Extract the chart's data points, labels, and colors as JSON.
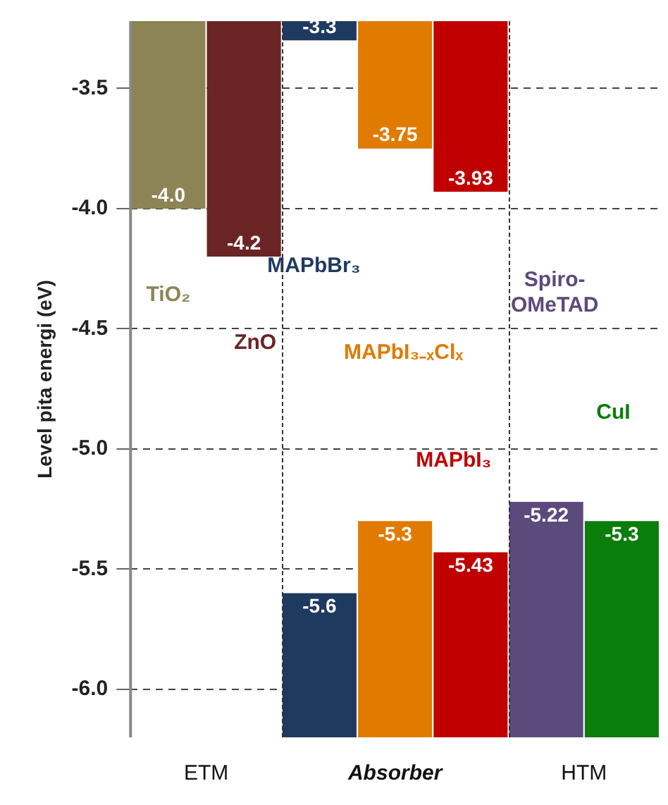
{
  "chart_data": {
    "type": "bar",
    "ylabel": "Level pita energi (eV)",
    "categories": [
      null,
      null,
      null,
      null,
      null,
      null,
      null
    ],
    "series": [
      {
        "colors": [
          "#8c8455",
          "#6b2424",
          "#1f3a5f",
          "#e07b00",
          "#c00000",
          null,
          null
        ],
        "base": [
          -3.22,
          -3.22,
          -3.22,
          -3.22,
          -3.22,
          null,
          null
        ],
        "values": [
          -0.78,
          -0.98,
          -0.08,
          -0.53,
          -0.71,
          null,
          null
        ],
        "value_labels": [
          "-4.0",
          "-4.2",
          "-3.3",
          "-3.75",
          "-3.93",
          null,
          null
        ]
      },
      {
        "colors": [
          null,
          null,
          "#1f3a5f",
          "#e07b00",
          "#c00000",
          "#5c4a7d",
          "#0a7d0a"
        ],
        "base": [
          null,
          null,
          -6.2,
          -6.2,
          -6.2,
          -6.2,
          -6.2
        ],
        "values": [
          null,
          null,
          0.6,
          0.9,
          0.77,
          0.98,
          0.9
        ],
        "value_labels": [
          null,
          null,
          "-5.6",
          "-5.3",
          "-5.43",
          "-5.22",
          "-5.3"
        ]
      }
    ],
    "ylim": [
      -6.2,
      -3.22
    ],
    "yticks": [
      {
        "value": -3.5,
        "label": "-3.5"
      },
      {
        "value": -4,
        "label": "-4.0"
      },
      {
        "value": -4.5,
        "label": "-4.5"
      },
      {
        "value": -5,
        "label": "-5.0"
      },
      {
        "value": -5.5,
        "label": "-5.5"
      },
      {
        "value": -6,
        "label": "-6.0"
      }
    ],
    "grid": "y",
    "line_style": "dashed",
    "annotations": [
      "TiO₂",
      "ZnO",
      "MAPbBr₃",
      "MAPbI₃₋ₓClₓ",
      "MAPbI₃",
      "Spiro-OMeTAD",
      "CuI",
      "ETM",
      "Absorber",
      "HTM"
    ]
  }
}
